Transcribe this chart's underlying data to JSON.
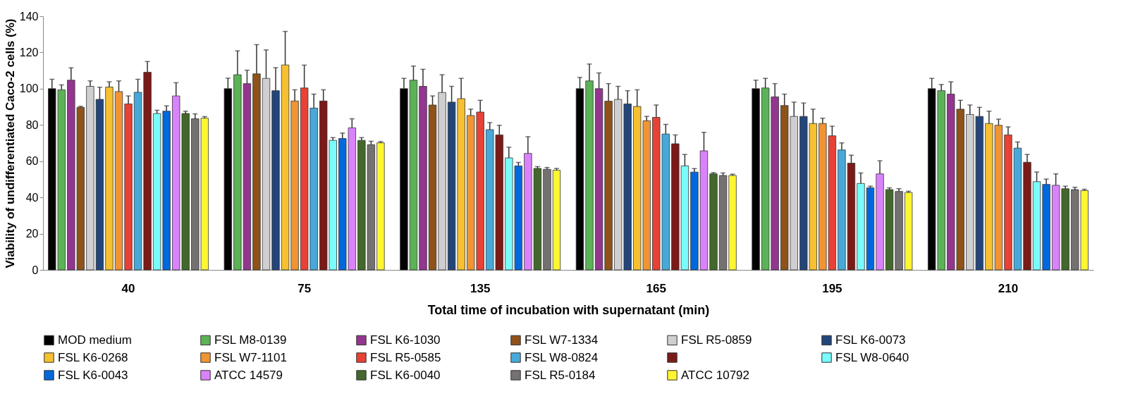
{
  "chart_data": {
    "type": "bar",
    "xlabel": "Total time of incubation with supernatant (min)",
    "ylabel": "Viability of undifferentiated Caco-2 cells (%)",
    "categories": [
      "40",
      "75",
      "135",
      "165",
      "195",
      "210"
    ],
    "ylim": [
      0,
      140
    ],
    "yticks": [
      0,
      20,
      40,
      60,
      80,
      100,
      120,
      140
    ],
    "grid": false,
    "legend": "bottom",
    "series": [
      {
        "name": "MOD medium",
        "color": "#000000",
        "values": [
          100,
          100,
          100,
          100,
          100,
          100
        ],
        "errors": [
          [
            100,
            105.2
          ],
          [
            100,
            105.8
          ],
          [
            100,
            105.7
          ],
          [
            100,
            106.2
          ],
          [
            100,
            104.7
          ],
          [
            100,
            105.7
          ]
        ]
      },
      {
        "name": "FSL M8-0139",
        "color": "#5cb257",
        "values": [
          99.4,
          107.7,
          104.7,
          104.3,
          100.4,
          98.9
        ],
        "errors": [
          [
            99.4,
            102.1
          ],
          [
            107.7,
            120.9
          ],
          [
            104.7,
            112.5
          ],
          [
            104.3,
            113.6
          ],
          [
            100.4,
            105.7
          ],
          [
            98.9,
            102.3
          ]
        ]
      },
      {
        "name": "FSL K6-1030",
        "color": "#93368f",
        "values": [
          104.7,
          102.8,
          101.3,
          100,
          95.5,
          97
        ],
        "errors": [
          [
            104.7,
            111.5
          ],
          [
            102.8,
            110.2
          ],
          [
            101.3,
            110.7
          ],
          [
            100,
            108.7
          ],
          [
            95.5,
            102.8
          ],
          [
            97,
            103.8
          ]
        ]
      },
      {
        "name": "FSL W7-1334",
        "color": "#8f5219",
        "values": [
          89.7,
          108.2,
          91,
          93.1,
          90.7,
          88.7
        ],
        "errors": [
          [
            89.7,
            90.3
          ],
          [
            108.2,
            124.3
          ],
          [
            91,
            96
          ],
          [
            93.1,
            102.8
          ],
          [
            90.7,
            97
          ],
          [
            88.7,
            93.6
          ]
        ]
      },
      {
        "name": "FSL R5-0859",
        "color": "#d0cece",
        "values": [
          101.3,
          105.7,
          97.9,
          94.1,
          84.7,
          85.8
        ],
        "errors": [
          [
            101.3,
            104.3
          ],
          [
            105.7,
            121.4
          ],
          [
            97.9,
            107.7
          ],
          [
            94.1,
            101.3
          ],
          [
            84.7,
            92.6
          ],
          [
            85.8,
            91
          ]
        ]
      },
      {
        "name": "FSL K6-0073",
        "color": "#23457a",
        "values": [
          94.1,
          98.9,
          92.6,
          91.6,
          84.7,
          84.7
        ],
        "errors": [
          [
            94.1,
            100.8
          ],
          [
            98.9,
            111.6
          ],
          [
            92.6,
            101.3
          ],
          [
            91.6,
            98.9
          ],
          [
            84.7,
            92.1
          ],
          [
            84.7,
            89.7
          ]
        ]
      },
      {
        "name": "FSL K6-0268",
        "color": "#f7c030",
        "values": [
          100.9,
          113.1,
          94.5,
          90.2,
          80.8,
          80.8
        ],
        "errors": [
          [
            100.9,
            103.8
          ],
          [
            113.1,
            131.6
          ],
          [
            94.5,
            105.7
          ],
          [
            90.2,
            99.4
          ],
          [
            80.8,
            88.7
          ],
          [
            80.8,
            87.6
          ]
        ]
      },
      {
        "name": "FSL W7-1101",
        "color": "#f19433",
        "values": [
          98.4,
          93.2,
          85.2,
          82.3,
          80.8,
          79.8
        ],
        "errors": [
          [
            98.4,
            104.3
          ],
          [
            93.2,
            99.4
          ],
          [
            85.2,
            88.7
          ],
          [
            82.3,
            84.7
          ],
          [
            80.8,
            83.7
          ],
          [
            79.8,
            83.2
          ]
        ]
      },
      {
        "name": "FSL R5-0585",
        "color": "#e84135",
        "values": [
          91.6,
          100.4,
          87.1,
          84.2,
          74,
          74.5
        ],
        "errors": [
          [
            91.6,
            96
          ],
          [
            100.4,
            113
          ],
          [
            87.1,
            93.6
          ],
          [
            84.2,
            91
          ],
          [
            74,
            79.3
          ],
          [
            74.5,
            78.9
          ]
        ]
      },
      {
        "name": "FSL W8-0824",
        "color": "#47a9d9",
        "values": [
          98,
          89.3,
          77.4,
          75,
          66.2,
          67.2
        ],
        "errors": [
          [
            98,
            105.2
          ],
          [
            89.3,
            97
          ],
          [
            77.4,
            81.3
          ],
          [
            75,
            80.3
          ],
          [
            66.2,
            70.1
          ],
          [
            67.2,
            70.6
          ]
        ]
      },
      {
        "name": null,
        "color": "#7b1a17",
        "values": [
          109.1,
          93.2,
          74.5,
          69.6,
          58.9,
          59.4
        ],
        "errors": [
          [
            109.1,
            115
          ],
          [
            93.2,
            99.4
          ],
          [
            74.5,
            79.8
          ],
          [
            69.6,
            74.5
          ],
          [
            58.9,
            63.3
          ],
          [
            59.4,
            63.7
          ]
        ]
      },
      {
        "name": "FSL W8-0640",
        "color": "#7afcfd",
        "values": [
          86.3,
          71.5,
          61.8,
          57.4,
          47.7,
          48.7
        ],
        "errors": [
          [
            86.3,
            88.1
          ],
          [
            71.5,
            73
          ],
          [
            61.8,
            67.7
          ],
          [
            57.4,
            63.7
          ],
          [
            47.7,
            53.5
          ],
          [
            48.7,
            54
          ]
        ]
      },
      {
        "name": "FSL K6-0043",
        "color": "#0068dd",
        "values": [
          87.6,
          72.5,
          57.4,
          54,
          45.3,
          47.2
        ],
        "errors": [
          [
            87.6,
            90.5
          ],
          [
            72.5,
            75.5
          ],
          [
            57.4,
            59.3
          ],
          [
            54,
            55.9
          ],
          [
            45.3,
            46.2
          ],
          [
            47.2,
            50.1
          ]
        ]
      },
      {
        "name": "ATCC 14579",
        "color": "#da82fb",
        "values": [
          96,
          78.4,
          64.3,
          65.7,
          53,
          46.7
        ],
        "errors": [
          [
            96,
            103.3
          ],
          [
            78.4,
            83.4
          ],
          [
            64.3,
            73.5
          ],
          [
            65.7,
            75.9
          ],
          [
            53,
            60.2
          ],
          [
            46.7,
            53
          ]
        ]
      },
      {
        "name": "FSL K6-0040",
        "color": "#44672b",
        "values": [
          86.3,
          71.5,
          56,
          53,
          44.3,
          44.8
        ],
        "errors": [
          [
            86.3,
            87.6
          ],
          [
            71.5,
            73
          ],
          [
            56,
            57
          ],
          [
            53,
            53.7
          ],
          [
            44.3,
            45.3
          ],
          [
            44.8,
            46.2
          ]
        ]
      },
      {
        "name": "FSL R5-0184",
        "color": "#767171",
        "values": [
          83.4,
          69.1,
          55.5,
          52.1,
          43.3,
          44.3
        ],
        "errors": [
          [
            83.4,
            86.1
          ],
          [
            69.1,
            71
          ],
          [
            55.5,
            56.5
          ],
          [
            52.1,
            53.5
          ],
          [
            43.3,
            44.8
          ],
          [
            44.3,
            45.6
          ]
        ]
      },
      {
        "name": "ATCC 10792",
        "color": "#fff62f",
        "values": [
          83.7,
          70.1,
          55,
          52.1,
          42.7,
          43.8
        ],
        "errors": [
          [
            83.7,
            84.6
          ],
          [
            70.1,
            70.8
          ],
          [
            55,
            56
          ],
          [
            52.1,
            52.8
          ],
          [
            42.7,
            43.4
          ],
          [
            43.8,
            44.5
          ]
        ]
      }
    ]
  }
}
